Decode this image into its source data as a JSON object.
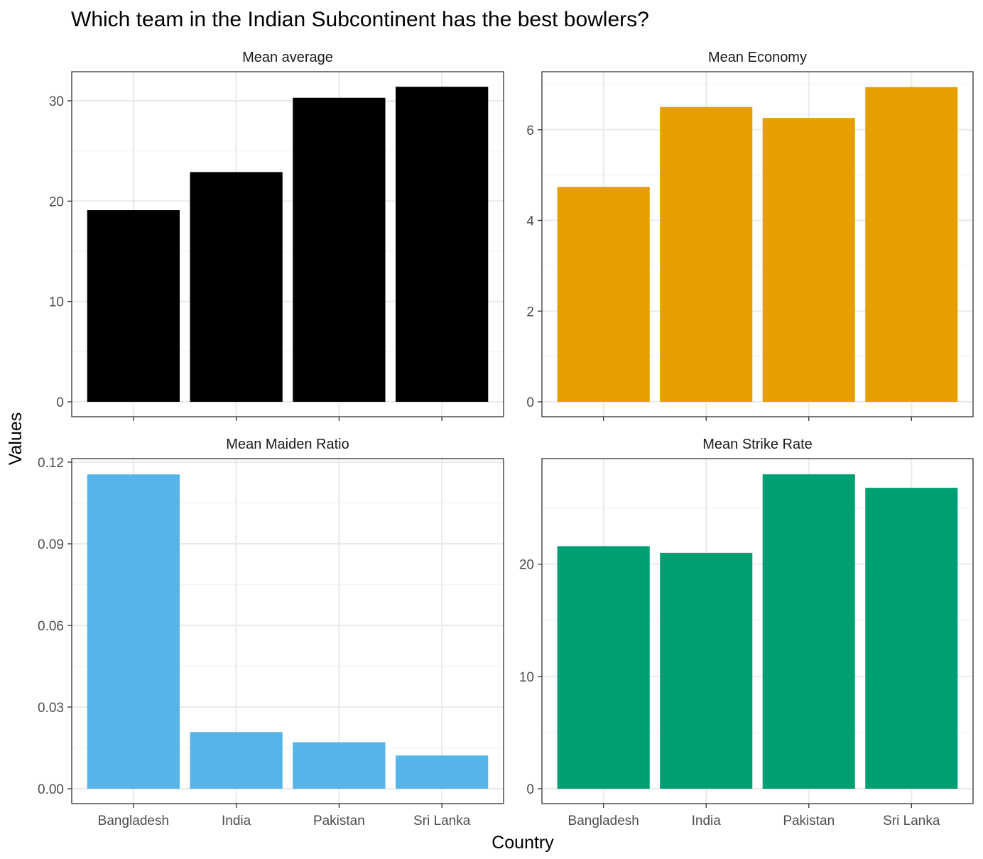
{
  "chart_data": {
    "type": "bar",
    "title": "Which team in the Indian Subcontinent has the best bowlers?",
    "xlabel": "Country",
    "ylabel": "Values",
    "categories": [
      "Bangladesh",
      "India",
      "Pakistan",
      "Sri Lanka"
    ],
    "grid": true,
    "panels": [
      {
        "name": "Mean average",
        "color": "#000000",
        "values": [
          19.1,
          22.9,
          30.3,
          31.4
        ],
        "ylim": [
          0,
          32.9
        ],
        "yticks": [
          0,
          10,
          20,
          30
        ],
        "ytick_labels": [
          "0",
          "10",
          "20",
          "30"
        ]
      },
      {
        "name": "Mean Economy",
        "color": "#E69F00",
        "values": [
          4.74,
          6.5,
          6.26,
          6.94
        ],
        "ylim": [
          0,
          7.28
        ],
        "yticks": [
          0,
          2,
          4,
          6
        ],
        "ytick_labels": [
          "0",
          "2",
          "4",
          "6"
        ]
      },
      {
        "name": "Mean Maiden Ratio",
        "color": "#56B4E9",
        "values": [
          0.1155,
          0.0208,
          0.0171,
          0.0122
        ],
        "ylim": [
          0,
          0.1213
        ],
        "yticks": [
          0,
          0.03,
          0.06,
          0.09,
          0.12
        ],
        "ytick_labels": [
          "0.00",
          "0.03",
          "0.06",
          "0.09",
          "0.12"
        ]
      },
      {
        "name": "Mean Strike Rate",
        "color": "#009E73",
        "values": [
          21.6,
          21.0,
          28.0,
          26.8
        ],
        "ylim": [
          0,
          29.4
        ],
        "yticks": [
          0,
          10,
          20
        ],
        "ytick_labels": [
          "0",
          "10",
          "20"
        ]
      }
    ]
  }
}
